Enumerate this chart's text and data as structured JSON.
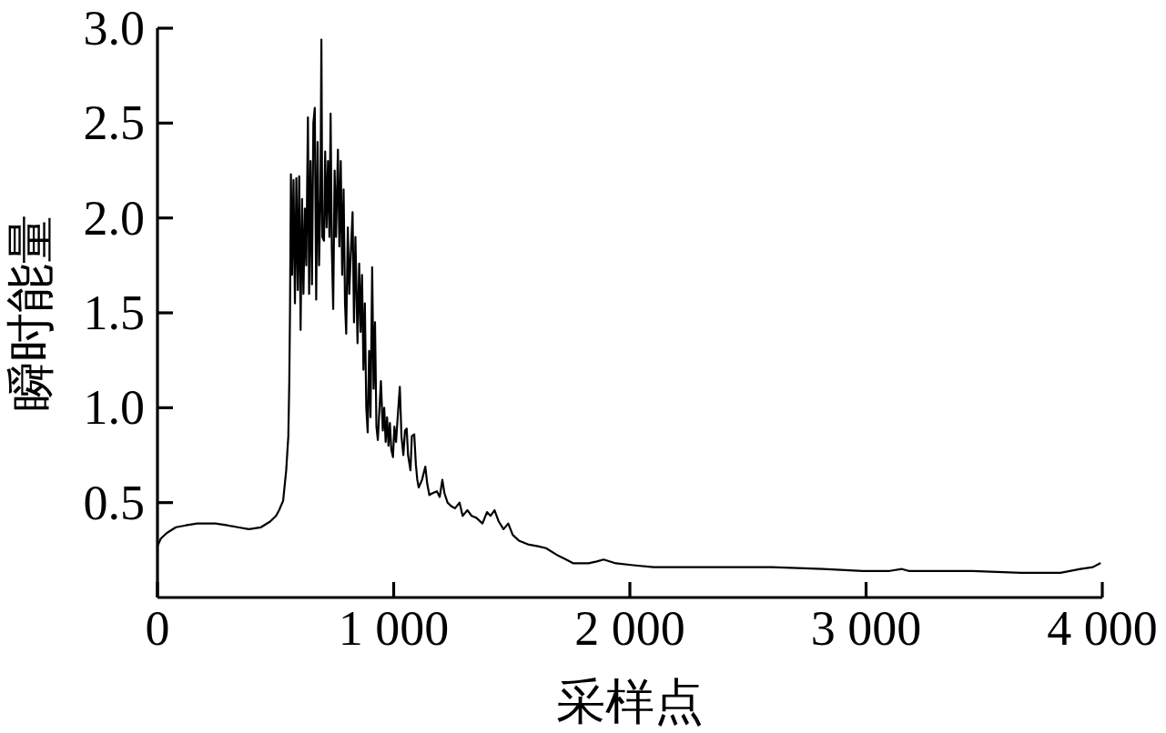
{
  "chart_data": {
    "type": "line",
    "xlabel": "采样点",
    "ylabel": "瞬时能量",
    "x": [
      0,
      14,
      40,
      78,
      120,
      168,
      245,
      297,
      340,
      387,
      438,
      477,
      502,
      515,
      532,
      545,
      554,
      558,
      561,
      565,
      570,
      576,
      582,
      588,
      594,
      600,
      606,
      612,
      618,
      624,
      630,
      637,
      642,
      648,
      654,
      660,
      666,
      672,
      678,
      684,
      690,
      694,
      698,
      705,
      710,
      716,
      722,
      728,
      733,
      738,
      744,
      750,
      756,
      764,
      770,
      776,
      782,
      788,
      794,
      799,
      806,
      812,
      818,
      826,
      832,
      838,
      847,
      854,
      860,
      866,
      872,
      878,
      884,
      890,
      896,
      902,
      909,
      915,
      921,
      927,
      933,
      940,
      946,
      954,
      960,
      966,
      972,
      978,
      984,
      990,
      997,
      1003,
      1010,
      1017,
      1026,
      1033,
      1041,
      1048,
      1055,
      1061,
      1071,
      1077,
      1087,
      1094,
      1100,
      1106,
      1120,
      1134,
      1142,
      1151,
      1165,
      1183,
      1195,
      1206,
      1215,
      1228,
      1245,
      1260,
      1279,
      1292,
      1312,
      1330,
      1350,
      1376,
      1395,
      1410,
      1427,
      1445,
      1465,
      1485,
      1504,
      1530,
      1568,
      1610,
      1645,
      1697,
      1730,
      1761,
      1825,
      1860,
      1889,
      1941,
      2014,
      2100,
      2316,
      2600,
      2817,
      2986,
      3100,
      3152,
      3180,
      3237,
      3450,
      3656,
      3823,
      3908,
      3960,
      3990
    ],
    "series": [
      {
        "color": "#000000",
        "values": [
          0.27,
          0.31,
          0.34,
          0.37,
          0.38,
          0.39,
          0.39,
          0.38,
          0.37,
          0.36,
          0.37,
          0.4,
          0.43,
          0.46,
          0.51,
          0.67,
          0.85,
          1.13,
          1.49,
          2.23,
          1.7,
          2.2,
          1.55,
          2.21,
          1.62,
          2.22,
          1.41,
          2.1,
          1.6,
          2.05,
          1.75,
          2.53,
          1.6,
          2.3,
          1.65,
          2.5,
          2.58,
          1.57,
          2.4,
          1.75,
          2.1,
          2.94,
          1.9,
          1.88,
          2.35,
          1.95,
          2.3,
          1.9,
          2.55,
          1.85,
          1.52,
          2.25,
          1.9,
          2.36,
          1.85,
          2.3,
          1.7,
          2.15,
          1.55,
          1.39,
          1.95,
          1.6,
          1.8,
          2.03,
          1.45,
          1.9,
          1.34,
          1.76,
          1.4,
          1.7,
          1.2,
          1.55,
          1.0,
          0.87,
          1.3,
          0.95,
          1.74,
          1.1,
          1.45,
          0.9,
          0.83,
          1.0,
          1.14,
          0.88,
          1.0,
          0.82,
          0.95,
          0.8,
          0.92,
          0.78,
          0.74,
          0.9,
          0.82,
          0.95,
          1.11,
          0.85,
          0.75,
          0.88,
          0.89,
          0.75,
          0.67,
          0.85,
          0.86,
          0.7,
          0.62,
          0.58,
          0.62,
          0.69,
          0.6,
          0.54,
          0.55,
          0.56,
          0.53,
          0.62,
          0.55,
          0.5,
          0.48,
          0.47,
          0.5,
          0.43,
          0.46,
          0.43,
          0.42,
          0.39,
          0.45,
          0.43,
          0.46,
          0.4,
          0.36,
          0.39,
          0.33,
          0.3,
          0.28,
          0.27,
          0.26,
          0.22,
          0.2,
          0.18,
          0.18,
          0.19,
          0.2,
          0.18,
          0.17,
          0.16,
          0.16,
          0.16,
          0.15,
          0.14,
          0.14,
          0.15,
          0.14,
          0.14,
          0.14,
          0.13,
          0.13,
          0.15,
          0.16,
          0.18
        ]
      }
    ],
    "xlim": [
      0,
      4000
    ],
    "ylim": [
      0,
      3.0
    ],
    "xticks": [
      0,
      {
        "value": 1000,
        "label": "1 000"
      },
      {
        "value": 2000,
        "label": "2 000"
      },
      {
        "value": 3000,
        "label": "3 000"
      },
      {
        "value": 4000,
        "label": "4 000"
      }
    ],
    "yticks": [
      0.5,
      {
        "value": 1,
        "label": "1.0"
      },
      1.5,
      {
        "value": 2,
        "label": "2.0"
      },
      2.5,
      {
        "value": 3,
        "label": "3.0"
      }
    ]
  }
}
